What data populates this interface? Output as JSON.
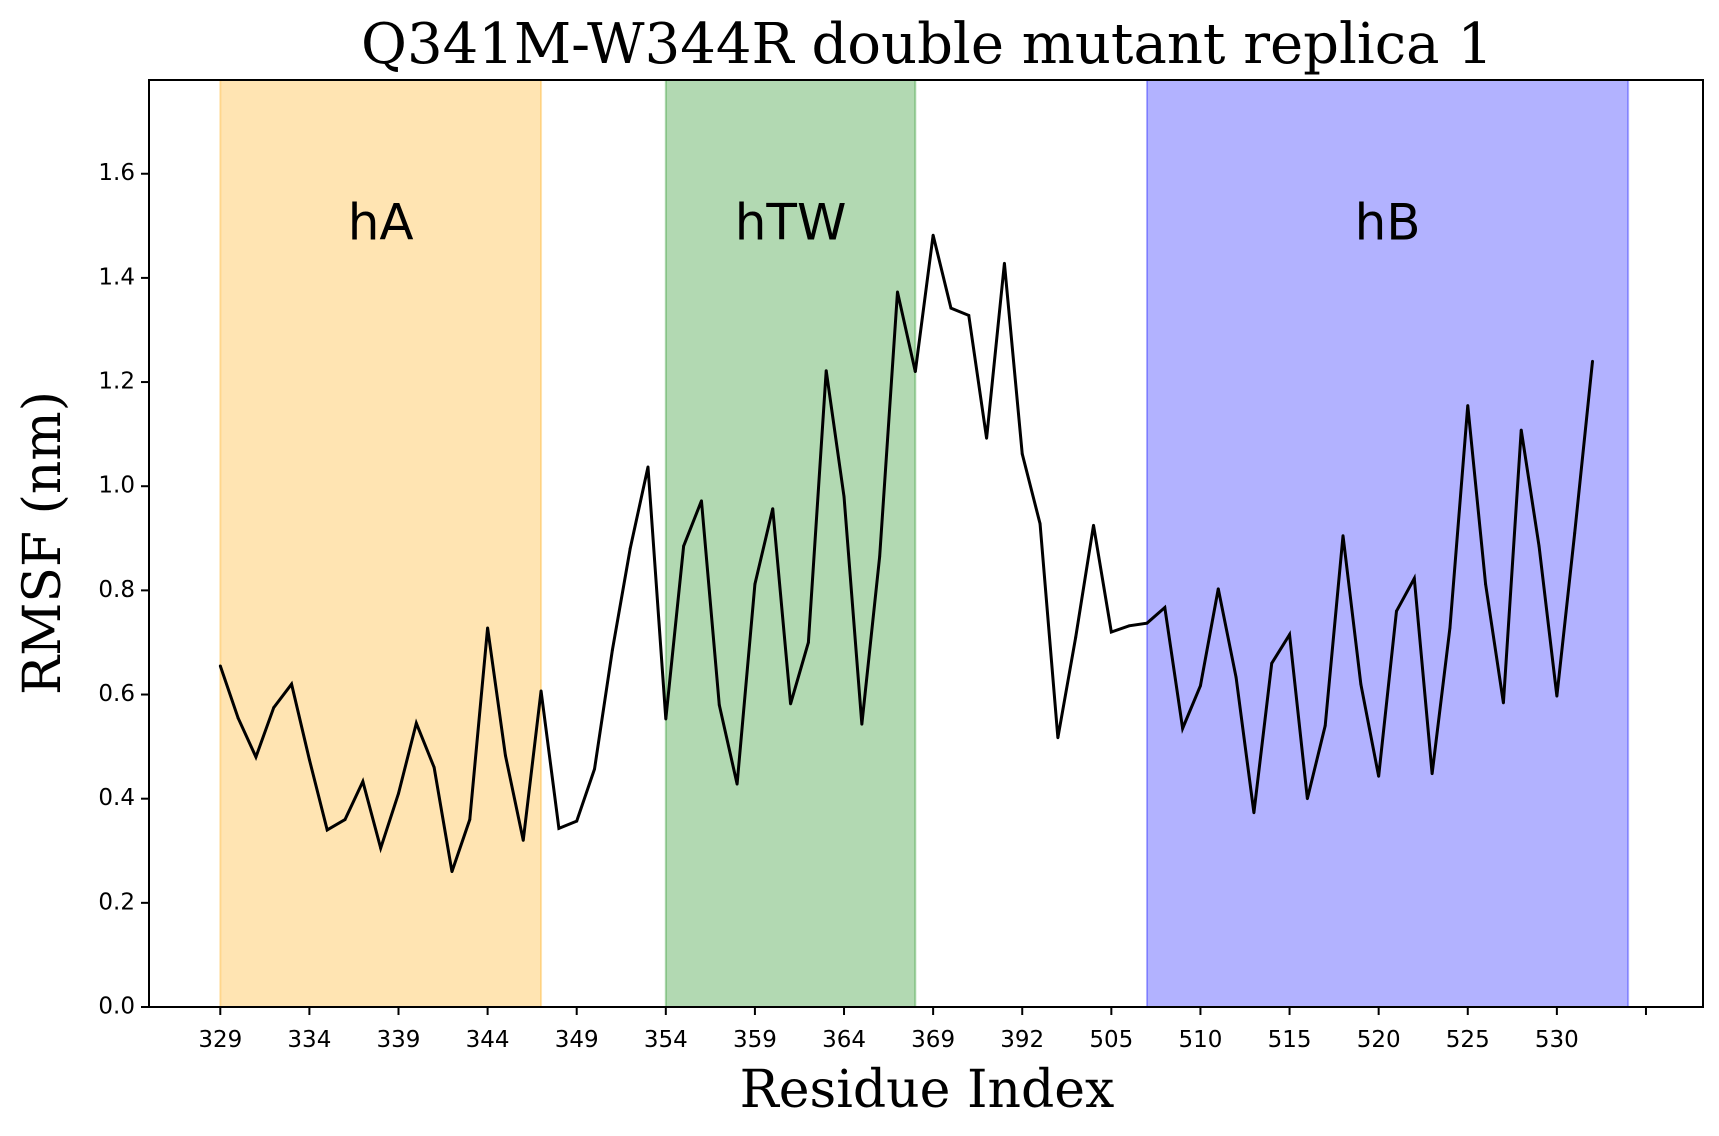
{
  "chart_data": {
    "type": "line",
    "title": "Q341M-W344R double mutant replica 1",
    "xlabel": "Residue Index",
    "ylabel": "RMSF (nm)",
    "ylim": [
      0.0,
      1.78
    ],
    "yticks": [
      "0.0",
      "0.2",
      "0.4",
      "0.6",
      "0.8",
      "1.0",
      "1.2",
      "1.4",
      "1.6"
    ],
    "xticks": [
      {
        "pos": 0,
        "label": "329"
      },
      {
        "pos": 5,
        "label": "334"
      },
      {
        "pos": 10,
        "label": "339"
      },
      {
        "pos": 15,
        "label": "344"
      },
      {
        "pos": 20,
        "label": "349"
      },
      {
        "pos": 25,
        "label": "354"
      },
      {
        "pos": 30,
        "label": "359"
      },
      {
        "pos": 35,
        "label": "364"
      },
      {
        "pos": 40,
        "label": "369"
      },
      {
        "pos": 45,
        "label": "392"
      },
      {
        "pos": 50,
        "label": "505"
      },
      {
        "pos": 55,
        "label": "510"
      },
      {
        "pos": 60,
        "label": "515"
      },
      {
        "pos": 65,
        "label": "520"
      },
      {
        "pos": 70,
        "label": "525"
      },
      {
        "pos": 75,
        "label": "530"
      },
      {
        "pos": 80,
        "label": ""
      }
    ],
    "xlim": [
      -4,
      83.2
    ],
    "regions": [
      {
        "name": "hA",
        "start": 0,
        "end": 18,
        "color": "#ffa500",
        "alpha": 0.3
      },
      {
        "name": "hTW",
        "start": 25,
        "end": 39,
        "color": "#008000",
        "alpha": 0.3
      },
      {
        "name": "hB",
        "start": 52,
        "end": 79,
        "color": "#0000ff",
        "alpha": 0.3
      }
    ],
    "series": [
      {
        "color": "#000000",
        "values": [
          0.655,
          0.555,
          0.48,
          0.575,
          0.62,
          0.475,
          0.34,
          0.36,
          0.433,
          0.305,
          0.41,
          0.545,
          0.46,
          0.26,
          0.36,
          0.728,
          0.483,
          0.32,
          0.607,
          0.343,
          0.357,
          0.457,
          0.685,
          0.88,
          1.037,
          0.553,
          0.885,
          0.972,
          0.58,
          0.428,
          0.812,
          0.957,
          0.582,
          0.7,
          1.222,
          0.98,
          0.543,
          0.865,
          1.373,
          1.22,
          1.482,
          1.342,
          1.328,
          1.092,
          1.428,
          1.062,
          0.928,
          0.517,
          0.71,
          0.925,
          0.72,
          0.732,
          0.737,
          0.767,
          0.535,
          0.617,
          0.803,
          0.633,
          0.373,
          0.66,
          0.715,
          0.4,
          0.54,
          0.905,
          0.62,
          0.443,
          0.76,
          0.823,
          0.448,
          0.728,
          1.155,
          0.812,
          0.584,
          1.108,
          0.885,
          0.597,
          0.91,
          1.24
        ]
      }
    ]
  }
}
